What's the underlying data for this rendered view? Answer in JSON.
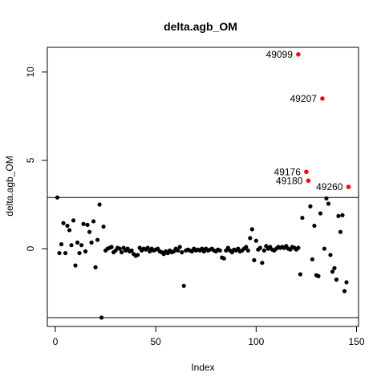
{
  "chart_data": {
    "type": "scatter",
    "title": "delta.agb_OM",
    "xlabel": "Index",
    "ylabel": "delta.agb_OM",
    "xlim": [
      -4,
      151
    ],
    "ylim": [
      -4.4,
      11.4
    ],
    "grid": false,
    "x_ticks": [
      0,
      50,
      100,
      150
    ],
    "y_ticks": [
      0,
      5,
      10
    ],
    "reference_lines_y": [
      2.9,
      -3.9
    ],
    "point_color": "#000000",
    "highlight_color": "#e8101e",
    "points": [
      [
        1,
        2.9
      ],
      [
        2,
        -0.25
      ],
      [
        3,
        0.25
      ],
      [
        4,
        1.45
      ],
      [
        5,
        -0.25
      ],
      [
        6,
        1.3
      ],
      [
        7,
        1.05
      ],
      [
        8,
        0.2
      ],
      [
        9,
        1.6
      ],
      [
        10,
        -0.95
      ],
      [
        11,
        0.35
      ],
      [
        12,
        -0.25
      ],
      [
        13,
        0.2
      ],
      [
        14,
        1.4
      ],
      [
        15,
        -0.15
      ],
      [
        16,
        1.35
      ],
      [
        17,
        0.95
      ],
      [
        18,
        0.35
      ],
      [
        19,
        1.55
      ],
      [
        20,
        -1.05
      ],
      [
        21,
        0.5
      ],
      [
        22,
        2.5
      ],
      [
        23,
        -3.9
      ],
      [
        24,
        1.25
      ],
      [
        25,
        -0.1
      ],
      [
        26,
        0.0
      ],
      [
        27,
        0.05
      ],
      [
        28,
        0.1
      ],
      [
        29,
        -0.2
      ],
      [
        30,
        -0.1
      ],
      [
        31,
        0.05
      ],
      [
        32,
        0.0
      ],
      [
        33,
        -0.2
      ],
      [
        34,
        0.05
      ],
      [
        35,
        -0.1
      ],
      [
        36,
        0.0
      ],
      [
        37,
        -0.15
      ],
      [
        38,
        -0.1
      ],
      [
        39,
        -0.3
      ],
      [
        40,
        -0.4
      ],
      [
        41,
        -0.35
      ],
      [
        42,
        0.05
      ],
      [
        43,
        -0.1
      ],
      [
        44,
        0.0
      ],
      [
        45,
        -0.05
      ],
      [
        46,
        0.05
      ],
      [
        47,
        -0.15
      ],
      [
        48,
        0.0
      ],
      [
        49,
        -0.1
      ],
      [
        50,
        -0.05
      ],
      [
        51,
        0.0
      ],
      [
        52,
        -0.15
      ],
      [
        53,
        -0.2
      ],
      [
        54,
        -0.3
      ],
      [
        55,
        -0.15
      ],
      [
        56,
        -0.25
      ],
      [
        57,
        -0.1
      ],
      [
        58,
        -0.2
      ],
      [
        59,
        -0.15
      ],
      [
        60,
        0.0
      ],
      [
        61,
        -0.1
      ],
      [
        62,
        0.1
      ],
      [
        63,
        -0.2
      ],
      [
        64,
        -2.1
      ],
      [
        65,
        -0.1
      ],
      [
        66,
        -0.05
      ],
      [
        67,
        -0.1
      ],
      [
        68,
        -0.15
      ],
      [
        69,
        0.0
      ],
      [
        70,
        -0.1
      ],
      [
        71,
        -0.05
      ],
      [
        72,
        -0.1
      ],
      [
        73,
        0.0
      ],
      [
        74,
        -0.15
      ],
      [
        75,
        0.0
      ],
      [
        76,
        -0.1
      ],
      [
        77,
        -0.05
      ],
      [
        78,
        0.0
      ],
      [
        79,
        -0.1
      ],
      [
        80,
        -0.15
      ],
      [
        81,
        -0.05
      ],
      [
        82,
        -0.1
      ],
      [
        83,
        -0.5
      ],
      [
        84,
        -0.55
      ],
      [
        85,
        -0.1
      ],
      [
        86,
        0.05
      ],
      [
        87,
        -0.1
      ],
      [
        88,
        -0.2
      ],
      [
        89,
        -0.05
      ],
      [
        90,
        -0.1
      ],
      [
        91,
        0.0
      ],
      [
        92,
        -0.15
      ],
      [
        93,
        -0.1
      ],
      [
        94,
        0.0
      ],
      [
        95,
        0.1
      ],
      [
        96,
        -0.1
      ],
      [
        97,
        0.6
      ],
      [
        98,
        1.1
      ],
      [
        99,
        -0.65
      ],
      [
        100,
        0.45
      ],
      [
        101,
        -0.05
      ],
      [
        102,
        0.05
      ],
      [
        103,
        -0.8
      ],
      [
        104,
        -0.1
      ],
      [
        105,
        0.15
      ],
      [
        106,
        0.0
      ],
      [
        107,
        0.1
      ],
      [
        108,
        -0.05
      ],
      [
        109,
        -0.1
      ],
      [
        110,
        0.0
      ],
      [
        111,
        0.1
      ],
      [
        112,
        0.05
      ],
      [
        113,
        0.1
      ],
      [
        114,
        0.05
      ],
      [
        115,
        0.15
      ],
      [
        116,
        0.0
      ],
      [
        117,
        -0.05
      ],
      [
        118,
        0.1
      ],
      [
        119,
        0.05
      ],
      [
        120,
        -0.05
      ],
      [
        121,
        0.05
      ],
      [
        122,
        -1.45
      ],
      [
        123,
        1.75
      ],
      [
        127,
        2.4
      ],
      [
        128,
        -0.6
      ],
      [
        129,
        1.3
      ],
      [
        130,
        -1.5
      ],
      [
        131,
        -1.55
      ],
      [
        132,
        2.0
      ],
      [
        134,
        0.0
      ],
      [
        135,
        2.85
      ],
      [
        136,
        2.55
      ],
      [
        137,
        -0.35
      ],
      [
        138,
        -1.3
      ],
      [
        139,
        -1.1
      ],
      [
        140,
        -1.75
      ],
      [
        141,
        1.85
      ],
      [
        142,
        0.95
      ],
      [
        143,
        1.9
      ],
      [
        144,
        -2.4
      ],
      [
        145,
        -1.9
      ]
    ],
    "highlighted_points": [
      {
        "x": 121,
        "y": 11.0,
        "label": "49099"
      },
      {
        "x": 133,
        "y": 8.5,
        "label": "49207"
      },
      {
        "x": 125,
        "y": 4.35,
        "label": "49176"
      },
      {
        "x": 126,
        "y": 3.85,
        "label": "49180"
      },
      {
        "x": 146,
        "y": 3.5,
        "label": "49260"
      }
    ]
  }
}
